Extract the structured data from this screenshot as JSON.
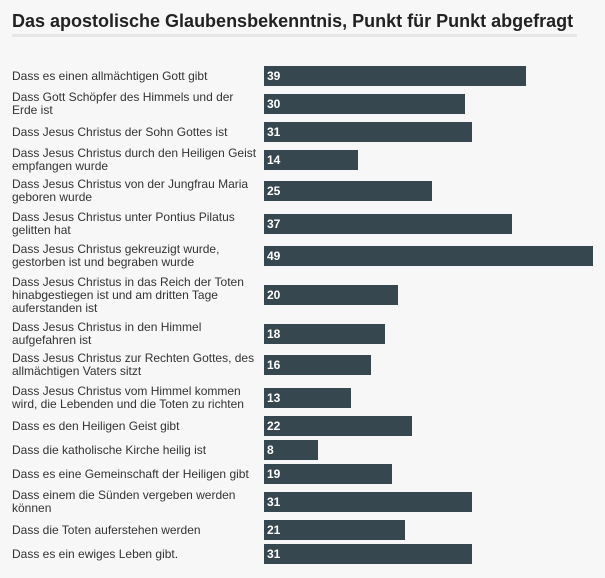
{
  "title": "Das apostolische Glaubensbekenntnis, Punkt für Punkt abgefragt",
  "colors": {
    "bar": "#37474f",
    "background": "#f7f7f7",
    "value_text": "#ffffff"
  },
  "chart_data": {
    "type": "bar",
    "orientation": "horizontal",
    "title": "Das apostolische Glaubensbekenntnis, Punkt für Punkt abgefragt",
    "xlabel": "",
    "ylabel": "",
    "xlim": [
      0,
      49
    ],
    "grid": false,
    "legend": "none",
    "categories": [
      "Dass es einen allmächtigen Gott gibt",
      "Dass Gott Schöpfer des Himmels und der Erde ist",
      "Dass Jesus Christus der Sohn Gottes ist",
      "Dass Jesus Christus durch den Heiligen Geist empfangen wurde",
      "Dass Jesus Christus von der Jungfrau Maria geboren wurde",
      "Dass Jesus Christus unter Pontius Pilatus gelitten hat",
      "Dass Jesus Christus gekreuzigt wurde, gestorben ist und begraben wurde",
      "Dass Jesus Christus in das Reich der Toten hinabgestiegen ist und am dritten Tage auferstanden ist",
      "Dass Jesus Christus in den Himmel aufgefahren ist",
      "Dass Jesus Christus zur Rechten Gottes, des allmächtigen Vaters sitzt",
      "Dass Jesus Christus vom Himmel kommen wird, die Lebenden und die Toten zu richten",
      "Dass es den Heiligen Geist gibt",
      "Dass die katholische Kirche heilig ist",
      "Dass es eine Gemeinschaft der Heiligen gibt",
      "Dass einem die Sünden vergeben werden können",
      "Dass die Toten auferstehen werden",
      "Dass es ein ewiges Leben gibt."
    ],
    "values": [
      39,
      30,
      31,
      14,
      25,
      37,
      49,
      20,
      18,
      16,
      13,
      22,
      8,
      19,
      31,
      21,
      31
    ]
  }
}
